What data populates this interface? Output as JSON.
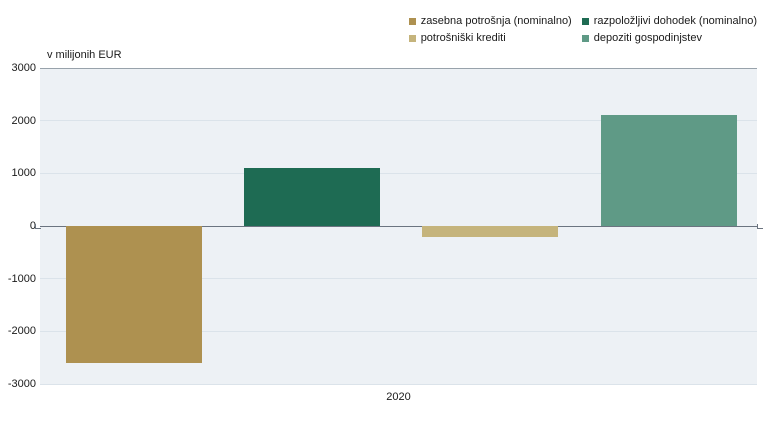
{
  "chart_data": {
    "type": "bar",
    "title": "v milijonih EUR",
    "categories": [
      "2020"
    ],
    "series": [
      {
        "name": "zasebna potrošnja (nominalno)",
        "value": -2600,
        "color": "#ae9150"
      },
      {
        "name": "razpoložljivi dohodek (nominalno)",
        "value": 1100,
        "color": "#1e6b53"
      },
      {
        "name": "potrošniški krediti",
        "value": -200,
        "color": "#c5b47c"
      },
      {
        "name": "depoziti gospodinjstev",
        "value": 2100,
        "color": "#5f9a86"
      }
    ],
    "xlabel": "2020",
    "ylabel": "v milijonih EUR",
    "ylim": [
      -3000,
      3000
    ],
    "yticks": [
      3000,
      2000,
      1000,
      0,
      -1000,
      -2000,
      -3000
    ],
    "grid": "on",
    "legend_position": "top-right",
    "colors": {
      "plot_background": "#edf1f5",
      "gridline": "#dbe3ea",
      "top_border": "#98a2ab",
      "zero_line": "#6b7480",
      "text": "#1a1a1a"
    }
  }
}
